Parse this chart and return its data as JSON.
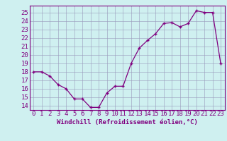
{
  "x": [
    0,
    1,
    2,
    3,
    4,
    5,
    6,
    7,
    8,
    9,
    10,
    11,
    12,
    13,
    14,
    15,
    16,
    17,
    18,
    19,
    20,
    21,
    22,
    23
  ],
  "y": [
    18,
    18,
    17.5,
    16.5,
    16.0,
    14.8,
    14.8,
    13.8,
    13.8,
    15.5,
    16.3,
    16.3,
    19.0,
    20.8,
    21.7,
    22.5,
    23.7,
    23.8,
    23.3,
    23.7,
    25.2,
    25.0,
    25.0,
    19.0
  ],
  "xlabel": "Windchill (Refroidissement éolien,°C)",
  "line_color": "#800080",
  "bg_color": "#cff0f0",
  "grid_color": "#9999bb",
  "ylim": [
    13.5,
    25.8
  ],
  "yticks": [
    14,
    15,
    16,
    17,
    18,
    19,
    20,
    21,
    22,
    23,
    24,
    25
  ],
  "xlim": [
    -0.5,
    23.5
  ],
  "xticks": [
    0,
    1,
    2,
    3,
    4,
    5,
    6,
    7,
    8,
    9,
    10,
    11,
    12,
    13,
    14,
    15,
    16,
    17,
    18,
    19,
    20,
    21,
    22,
    23
  ],
  "tick_fontsize": 6.5,
  "xlabel_fontsize": 6.5
}
